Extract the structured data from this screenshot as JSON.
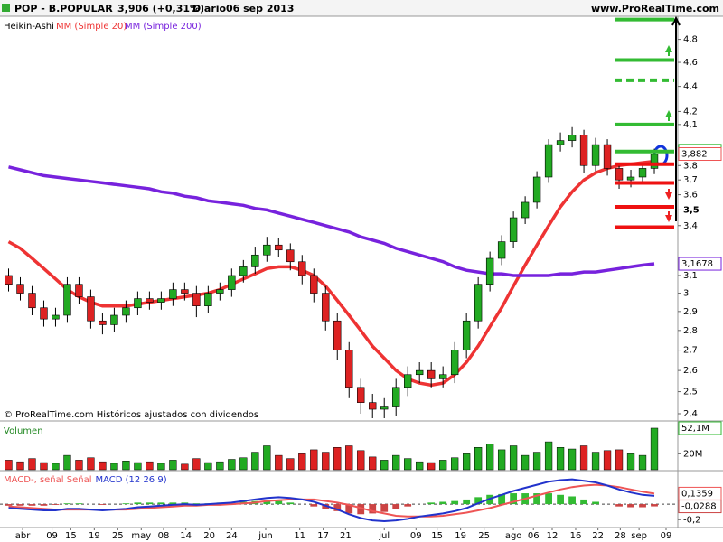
{
  "header": {
    "symbol": "POP - B.POPULAR",
    "quote": "3,906 (+0,31%)",
    "period": "Diario",
    "date": "06 sep 2013",
    "site": "www.ProRealTime.com"
  },
  "chart_data": [
    {
      "type": "candlestick",
      "name": "Heikin-Ashi",
      "up_color": "#22aa22",
      "down_color": "#dd2222",
      "log_scale": true,
      "note": "© ProRealTime.com Históricos ajustados con dividendos",
      "ylim": [
        2.372,
        5.01
      ],
      "yticks": [
        {
          "value": 4.8,
          "label": "4,8"
        },
        {
          "value": 4.6,
          "label": "4,6"
        },
        {
          "value": 4.4,
          "label": "4,4"
        },
        {
          "value": 4.2,
          "label": "4,2"
        },
        {
          "value": 4.1,
          "label": "4,1"
        },
        {
          "value": 3.8,
          "label": "3,8"
        },
        {
          "value": 3.7,
          "label": "3,7"
        },
        {
          "value": 3.6,
          "label": "3,6"
        },
        {
          "value": 3.5,
          "label": "3,5"
        },
        {
          "value": 3.4,
          "label": "3,4"
        },
        {
          "value": 3.1,
          "label": "3,1"
        },
        3,
        {
          "value": 2.9,
          "label": "2,9"
        },
        {
          "value": 2.8,
          "label": "2,8"
        },
        {
          "value": 2.7,
          "label": "2,7"
        },
        {
          "value": 2.6,
          "label": "2,6"
        },
        {
          "value": 2.5,
          "label": "2,5"
        },
        {
          "value": 2.4,
          "label": "2,4"
        }
      ],
      "open": [
        3.1,
        3.05,
        3.0,
        2.92,
        2.86,
        2.88,
        3.05,
        2.98,
        2.85,
        2.83,
        2.88,
        2.92,
        2.97,
        2.95,
        2.97,
        3.02,
        3.0,
        2.93,
        3.0,
        3.02,
        3.1,
        3.15,
        3.22,
        3.28,
        3.25,
        3.18,
        3.1,
        3.0,
        2.85,
        2.7,
        2.52,
        2.45,
        2.42,
        2.43,
        2.52,
        2.58,
        2.6,
        2.56,
        2.58,
        2.7,
        2.85,
        3.05,
        3.2,
        3.3,
        3.45,
        3.55,
        3.72,
        3.95,
        3.98,
        4.02,
        3.8,
        3.95,
        3.78,
        3.7,
        3.72,
        3.78
      ],
      "high": [
        3.14,
        3.09,
        3.04,
        2.96,
        2.92,
        3.09,
        3.09,
        3.02,
        2.89,
        2.92,
        2.96,
        3.01,
        3.01,
        3.01,
        3.06,
        3.06,
        3.04,
        3.04,
        3.06,
        3.14,
        3.19,
        3.27,
        3.33,
        3.32,
        3.29,
        3.22,
        3.14,
        3.04,
        2.89,
        2.74,
        2.56,
        2.49,
        2.47,
        2.56,
        2.62,
        2.64,
        2.64,
        2.62,
        2.74,
        2.89,
        3.09,
        3.24,
        3.34,
        3.49,
        3.59,
        3.76,
        3.99,
        4.04,
        4.08,
        4.06,
        4.0,
        3.99,
        3.82,
        3.77,
        3.82,
        3.92
      ],
      "low": [
        3.01,
        2.96,
        2.88,
        2.82,
        2.82,
        2.84,
        2.94,
        2.81,
        2.78,
        2.79,
        2.84,
        2.88,
        2.91,
        2.91,
        2.93,
        2.96,
        2.87,
        2.89,
        2.96,
        2.98,
        3.06,
        3.11,
        3.18,
        3.21,
        3.13,
        3.05,
        2.95,
        2.8,
        2.65,
        2.47,
        2.4,
        2.38,
        2.38,
        2.39,
        2.48,
        2.54,
        2.52,
        2.52,
        2.54,
        2.66,
        2.81,
        3.01,
        3.16,
        3.26,
        3.41,
        3.51,
        3.68,
        3.9,
        3.93,
        3.75,
        3.76,
        3.73,
        3.64,
        3.65,
        3.68,
        3.74
      ],
      "close": [
        3.05,
        3.0,
        2.92,
        2.86,
        2.88,
        3.05,
        2.98,
        2.85,
        2.83,
        2.88,
        2.92,
        2.97,
        2.95,
        2.97,
        3.02,
        3.0,
        2.93,
        3.0,
        3.02,
        3.1,
        3.15,
        3.22,
        3.28,
        3.25,
        3.18,
        3.1,
        3.0,
        2.85,
        2.7,
        2.52,
        2.45,
        2.42,
        2.43,
        2.52,
        2.58,
        2.6,
        2.56,
        2.58,
        2.7,
        2.85,
        3.05,
        3.2,
        3.3,
        3.45,
        3.55,
        3.72,
        3.95,
        3.98,
        4.02,
        3.8,
        3.95,
        3.78,
        3.7,
        3.72,
        3.78,
        3.88
      ],
      "series": [
        {
          "name": "MM (Simple 20)",
          "color": "#ee3333",
          "values": [
            3.3,
            3.26,
            3.2,
            3.14,
            3.08,
            3.02,
            2.98,
            2.95,
            2.93,
            2.93,
            2.93,
            2.94,
            2.95,
            2.96,
            2.97,
            2.98,
            2.99,
            3.0,
            3.02,
            3.05,
            3.08,
            3.11,
            3.14,
            3.15,
            3.15,
            3.13,
            3.1,
            3.04,
            2.96,
            2.88,
            2.8,
            2.72,
            2.66,
            2.6,
            2.56,
            2.54,
            2.53,
            2.54,
            2.58,
            2.64,
            2.72,
            2.82,
            2.92,
            3.04,
            3.16,
            3.28,
            3.4,
            3.52,
            3.62,
            3.7,
            3.75,
            3.78,
            3.8,
            3.81,
            3.82,
            3.83
          ]
        },
        {
          "name": "MM (Simple 200)",
          "color": "#7722dd",
          "values": [
            3.79,
            3.77,
            3.75,
            3.73,
            3.72,
            3.71,
            3.7,
            3.69,
            3.68,
            3.67,
            3.66,
            3.65,
            3.64,
            3.62,
            3.61,
            3.59,
            3.58,
            3.56,
            3.55,
            3.54,
            3.53,
            3.51,
            3.5,
            3.48,
            3.46,
            3.44,
            3.42,
            3.4,
            3.38,
            3.36,
            3.33,
            3.31,
            3.29,
            3.26,
            3.24,
            3.22,
            3.2,
            3.18,
            3.15,
            3.13,
            3.12,
            3.11,
            3.11,
            3.1,
            3.1,
            3.1,
            3.1,
            3.11,
            3.11,
            3.12,
            3.12,
            3.13,
            3.14,
            3.15,
            3.16,
            3.1678
          ]
        }
      ],
      "levels": [
        {
          "value": 4.98,
          "color": "#33bb33",
          "dashed": false
        },
        {
          "value": 4.62,
          "color": "#33bb33",
          "dashed": false
        },
        {
          "value": 4.45,
          "color": "#33bb33",
          "dashed": true
        },
        {
          "value": 4.1,
          "color": "#33bb33",
          "dashed": false
        },
        {
          "value": 3.9,
          "color": "#33bb33",
          "dashed": false
        },
        {
          "value": 3.81,
          "color": "#ee1111",
          "dashed": false
        },
        {
          "value": 3.68,
          "color": "#ee1111",
          "dashed": false
        },
        {
          "value": 3.52,
          "color": "#ee1111",
          "dashed": false
        },
        {
          "value": 3.39,
          "color": "#ee1111",
          "dashed": false
        }
      ],
      "price_labels": [
        {
          "value": 3.906,
          "label": "3,906",
          "color": "#33bb33"
        },
        {
          "value": 3.882,
          "label": "3,882",
          "color": "#ee5555"
        },
        {
          "value": 3.1678,
          "label": "3,1678",
          "color": "#7722dd"
        }
      ]
    },
    {
      "type": "volume",
      "title": "Volumen",
      "ylim": [
        0,
        60
      ],
      "yticks": [
        {
          "value": 20,
          "label": "20M"
        }
      ],
      "values": [
        12,
        10,
        14,
        9,
        8,
        18,
        12,
        15,
        10,
        8,
        11,
        9,
        10,
        8,
        12,
        7,
        14,
        9,
        10,
        13,
        15,
        22,
        30,
        18,
        14,
        20,
        25,
        22,
        28,
        30,
        24,
        16,
        12,
        18,
        14,
        10,
        9,
        12,
        15,
        20,
        28,
        32,
        25,
        30,
        18,
        22,
        35,
        28,
        26,
        30,
        22,
        24,
        25,
        20,
        18,
        52.1
      ],
      "price_labels": [
        {
          "value": 52.1,
          "label": "52,1M",
          "color": "#33bb33"
        }
      ]
    },
    {
      "type": "macd",
      "ylim": [
        -0.29,
        0.42
      ],
      "yticks": [
        {
          "value": -0.2,
          "label": "-0,2"
        }
      ],
      "xlim": [
        0,
        57.5
      ],
      "xticks": [
        {
          "value": 1.7,
          "label": "abr"
        },
        {
          "value": 4.2,
          "label": "09"
        },
        {
          "value": 5.8,
          "label": "15"
        },
        {
          "value": 7.8,
          "label": "19"
        },
        {
          "value": 9.8,
          "label": "25"
        },
        {
          "value": 11.8,
          "label": "may"
        },
        {
          "value": 13.7,
          "label": "08"
        },
        {
          "value": 15.6,
          "label": "14"
        },
        {
          "value": 17.6,
          "label": "20"
        },
        {
          "value": 19.5,
          "label": "24"
        },
        {
          "value": 22.4,
          "label": "jun"
        },
        {
          "value": 25.3,
          "label": "11"
        },
        {
          "value": 27.3,
          "label": "17"
        },
        {
          "value": 29.2,
          "label": "21"
        },
        {
          "value": 32.5,
          "label": "jul"
        },
        {
          "value": 35.2,
          "label": "09"
        },
        {
          "value": 37.0,
          "label": "15"
        },
        {
          "value": 39.0,
          "label": "19"
        },
        {
          "value": 41.0,
          "label": "25"
        },
        {
          "value": 43.5,
          "label": "ago"
        },
        {
          "value": 45.2,
          "label": "06"
        },
        {
          "value": 46.8,
          "label": "12"
        },
        {
          "value": 48.8,
          "label": "16"
        },
        {
          "value": 50.7,
          "label": "22"
        },
        {
          "value": 52.6,
          "label": "28"
        },
        {
          "value": 54.2,
          "label": "sep"
        },
        {
          "value": 56.5,
          "label": "09"
        }
      ],
      "series": [
        {
          "name": "MACD-, señal Señal",
          "color": "#ee5555",
          "values": [
            -0.03,
            -0.04,
            -0.05,
            -0.06,
            -0.07,
            -0.07,
            -0.07,
            -0.07,
            -0.07,
            -0.07,
            -0.07,
            -0.06,
            -0.05,
            -0.04,
            -0.03,
            -0.02,
            -0.02,
            -0.01,
            -0.01,
            0.0,
            0.01,
            0.02,
            0.04,
            0.05,
            0.06,
            0.06,
            0.06,
            0.04,
            0.02,
            -0.01,
            -0.05,
            -0.09,
            -0.12,
            -0.15,
            -0.16,
            -0.16,
            -0.16,
            -0.15,
            -0.13,
            -0.11,
            -0.08,
            -0.05,
            -0.01,
            0.03,
            0.07,
            0.11,
            0.15,
            0.19,
            0.22,
            0.24,
            0.25,
            0.24,
            0.22,
            0.19,
            0.16,
            0.1359
          ]
        },
        {
          "name": "MACD (12 26 9)",
          "color": "#2233cc",
          "values": [
            -0.05,
            -0.06,
            -0.07,
            -0.08,
            -0.08,
            -0.06,
            -0.06,
            -0.07,
            -0.08,
            -0.07,
            -0.06,
            -0.04,
            -0.03,
            -0.02,
            -0.01,
            0.0,
            -0.01,
            0.0,
            0.01,
            0.02,
            0.04,
            0.06,
            0.08,
            0.09,
            0.08,
            0.06,
            0.03,
            -0.02,
            -0.07,
            -0.13,
            -0.18,
            -0.21,
            -0.22,
            -0.21,
            -0.19,
            -0.16,
            -0.14,
            -0.12,
            -0.09,
            -0.05,
            0.01,
            0.07,
            0.12,
            0.17,
            0.21,
            0.25,
            0.29,
            0.31,
            0.32,
            0.3,
            0.28,
            0.24,
            0.19,
            0.15,
            0.12,
            0.1071
          ]
        }
      ],
      "histogram": [
        -0.02,
        -0.02,
        -0.02,
        -0.02,
        -0.01,
        0.01,
        0.01,
        0.0,
        -0.01,
        0.0,
        0.01,
        0.02,
        0.02,
        0.02,
        0.02,
        0.02,
        0.01,
        0.01,
        0.02,
        0.02,
        0.03,
        0.04,
        0.04,
        0.04,
        0.02,
        0.0,
        -0.03,
        -0.06,
        -0.09,
        -0.12,
        -0.13,
        -0.12,
        -0.1,
        -0.06,
        -0.03,
        0.0,
        0.02,
        0.03,
        0.04,
        0.06,
        0.09,
        0.12,
        0.13,
        0.14,
        0.14,
        0.14,
        0.14,
        0.12,
        0.1,
        0.06,
        0.03,
        0.0,
        -0.03,
        -0.04,
        -0.04,
        -0.0288
      ],
      "hist_up_color": "#33bb33",
      "hist_down_color": "#cc4444",
      "price_labels": [
        {
          "value": 0.1359,
          "label": "0,1359",
          "color": "#ee5555"
        },
        {
          "value": -0.0288,
          "label": "-0,0288",
          "color": "#cc4444"
        }
      ]
    }
  ]
}
